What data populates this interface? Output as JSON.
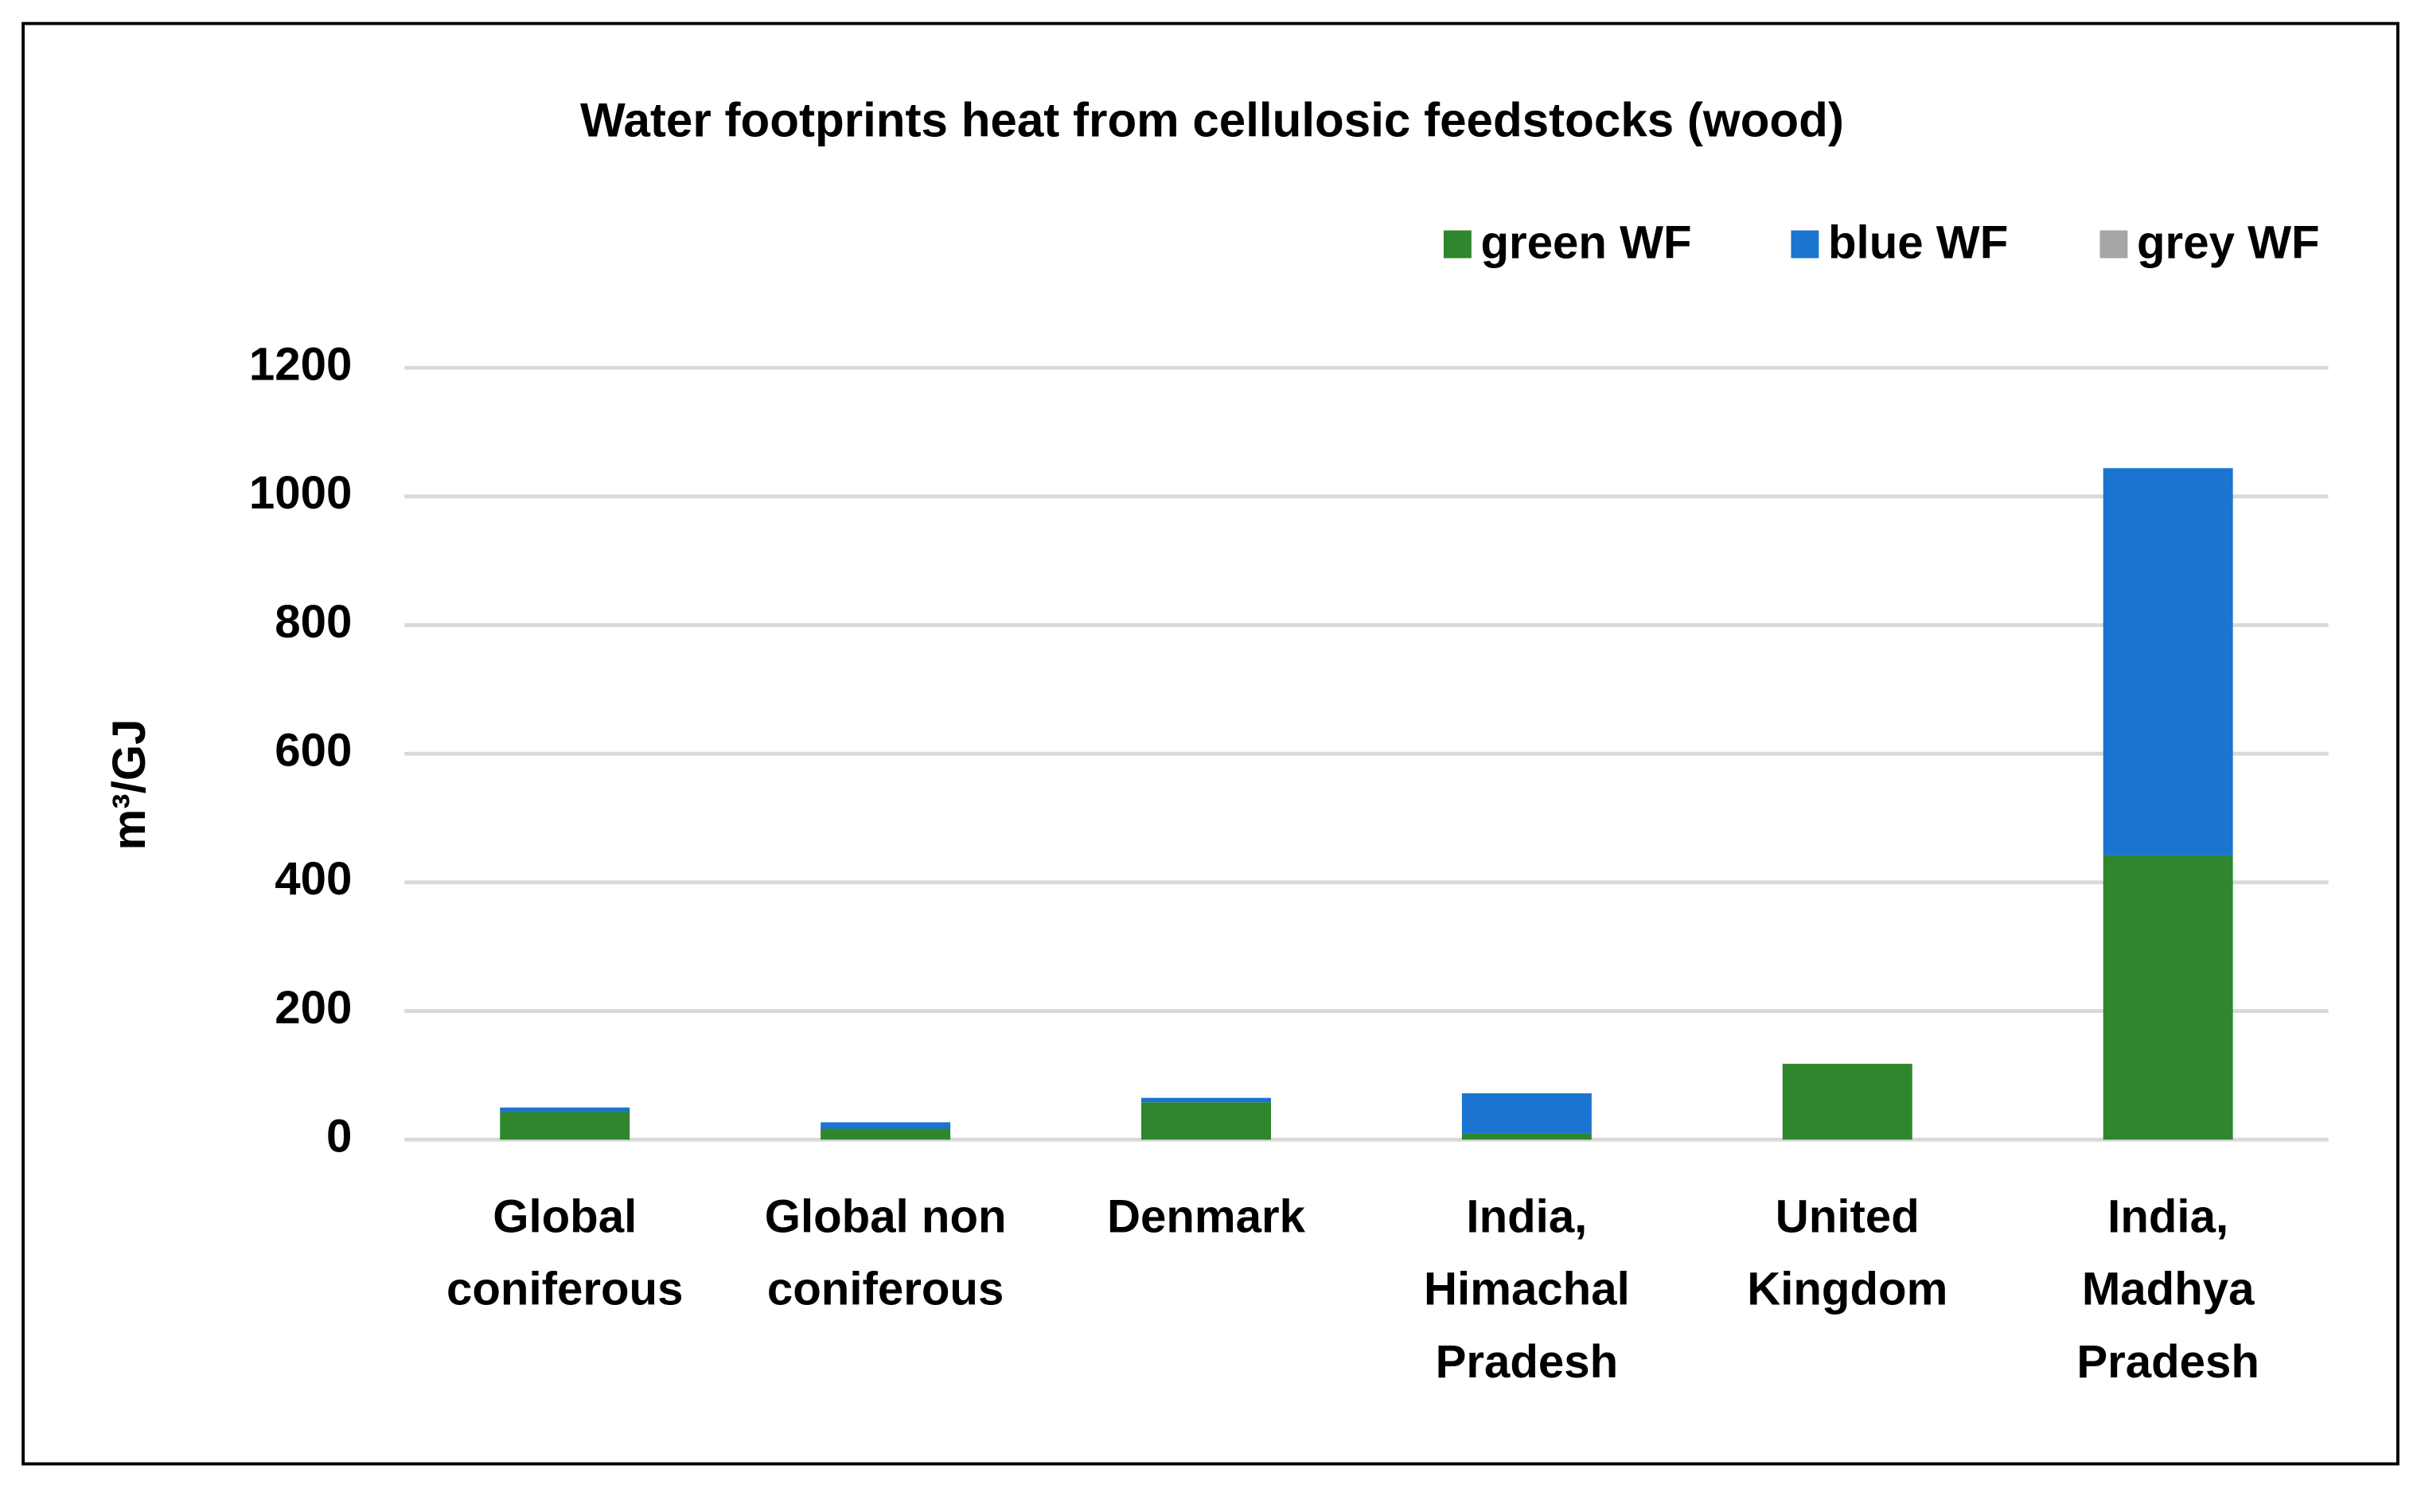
{
  "chart_data": {
    "type": "stacked-bar",
    "title": "Water footprints heat from cellulosic feedstocks (wood)",
    "y_label": "m³/GJ",
    "categories": [
      [
        "Global",
        "coniferous"
      ],
      [
        "Global non",
        "coniferous"
      ],
      [
        "Denmark"
      ],
      [
        "India,",
        "Himachal",
        "Pradesh"
      ],
      [
        "United",
        "Kingdom"
      ],
      [
        "India,",
        "Madhya",
        "Pradesh"
      ]
    ],
    "series": [
      {
        "name": "green WF",
        "color": "#2f862c",
        "values": [
          43,
          17,
          58,
          10,
          118,
          442
        ]
      },
      {
        "name": "blue WF",
        "color": "#1b74cf",
        "values": [
          7,
          10,
          7,
          62,
          0,
          602
        ]
      },
      {
        "name": "grey WF",
        "color": "#a6a6a6",
        "values": [
          0,
          0,
          0,
          0,
          0,
          0
        ]
      }
    ],
    "ylim": [
      0,
      1200
    ],
    "yticks": [
      0,
      200,
      400,
      600,
      800,
      1000,
      1200
    ],
    "grid": true,
    "legend": "top-right"
  }
}
